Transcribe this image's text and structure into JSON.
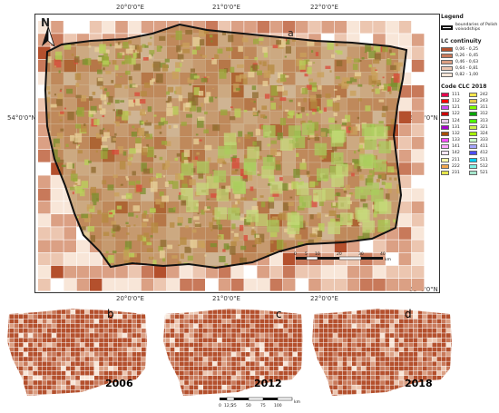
{
  "panel_a": {
    "letter": "a",
    "graticule": {
      "top": [
        "20°0'0\"E",
        "21°0'0\"E",
        "22°0'0\"E"
      ],
      "bottom": [
        "20°0'0\"E",
        "21°0'0\"E",
        "22°0'0\"E"
      ],
      "left": [
        "54°0'0\"N"
      ],
      "right": [
        "54°0'0\"N",
        "53°0'0\"N"
      ]
    },
    "north_label": "N",
    "scalebar": {
      "ticks": [
        "0",
        "5",
        "10",
        "20",
        "30",
        "40"
      ],
      "unit": "km"
    }
  },
  "legend": {
    "title": "Legend",
    "boundary_label": "boundaries of Polish voivodships",
    "lc_continuity_title": "LC continuity",
    "lc_continuity": [
      {
        "range": "0,06 - 0,25",
        "color": "#b4502d"
      },
      {
        "range": "0,26 - 0,45",
        "color": "#c8795a"
      },
      {
        "range": "0,46 - 0,63",
        "color": "#dba084"
      },
      {
        "range": "0,64 - 0,81",
        "color": "#ecc6b0"
      },
      {
        "range": "0,82 - 1,00",
        "color": "#f8e6d8"
      }
    ],
    "clc_title": "Code CLC 2018",
    "clc_codes": [
      {
        "code": "111",
        "color": "#e6004d"
      },
      {
        "code": "112",
        "color": "#ff0000"
      },
      {
        "code": "121",
        "color": "#cc4df2"
      },
      {
        "code": "122",
        "color": "#cc0000"
      },
      {
        "code": "124",
        "color": "#e6cce6"
      },
      {
        "code": "131",
        "color": "#a600cc"
      },
      {
        "code": "132",
        "color": "#a64d00"
      },
      {
        "code": "133",
        "color": "#ff4dff"
      },
      {
        "code": "141",
        "color": "#ffa6ff"
      },
      {
        "code": "142",
        "color": "#ffe6ff"
      },
      {
        "code": "211",
        "color": "#ffffa8"
      },
      {
        "code": "222",
        "color": "#f2a64d"
      },
      {
        "code": "231",
        "color": "#e6e64d"
      },
      {
        "code": "242",
        "color": "#ffe64d"
      },
      {
        "code": "243",
        "color": "#e6cc4d"
      },
      {
        "code": "311",
        "color": "#80ff00"
      },
      {
        "code": "312",
        "color": "#00a600"
      },
      {
        "code": "313",
        "color": "#4dff00"
      },
      {
        "code": "321",
        "color": "#ccf24d"
      },
      {
        "code": "324",
        "color": "#a6f200"
      },
      {
        "code": "333",
        "color": "#ccffcc"
      },
      {
        "code": "411",
        "color": "#a6a6ff"
      },
      {
        "code": "412",
        "color": "#4d4dff"
      },
      {
        "code": "511",
        "color": "#00ccf2"
      },
      {
        "code": "512",
        "color": "#80f2e6"
      },
      {
        "code": "521",
        "color": "#a6e6cc"
      }
    ]
  },
  "small_panels": [
    {
      "letter": "b",
      "year": "2006"
    },
    {
      "letter": "c",
      "year": "2012"
    },
    {
      "letter": "d",
      "year": "2018"
    }
  ],
  "small_scalebar": {
    "ticks": [
      "0",
      "12,5",
      "25",
      "50",
      "75",
      "100"
    ],
    "unit": "km"
  }
}
